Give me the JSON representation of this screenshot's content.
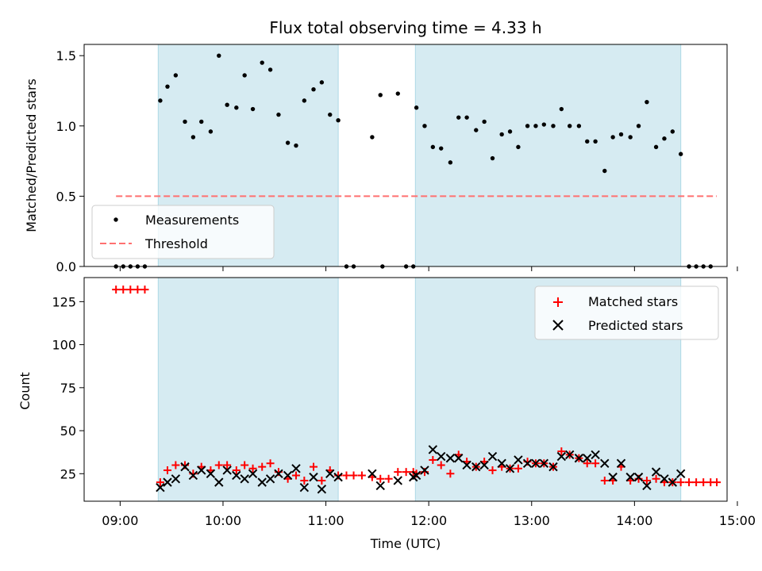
{
  "chart_data": [
    {
      "type": "scatter",
      "title": "Flux total observing time = 4.33 h",
      "xlabel": "",
      "ylabel": "Matched/Predicted stars",
      "xlim": [
        -0.35,
        5.9
      ],
      "ylim": [
        0,
        1.58
      ],
      "yticks": [
        0,
        0.5,
        1.0,
        1.5
      ],
      "ytick_labels": [
        "0.0",
        "0.5",
        "1.0",
        "1.5"
      ],
      "shaded_intervals": [
        [
          0.37,
          2.12
        ],
        [
          2.87,
          5.45
        ]
      ],
      "shade_color": "#add8e6",
      "series": [
        {
          "name": "Measurements",
          "marker": "dot",
          "color": "#000000",
          "points": [
            [
              -0.04,
              0
            ],
            [
              0.03,
              0
            ],
            [
              0.1,
              0
            ],
            [
              0.17,
              0
            ],
            [
              0.24,
              0
            ],
            [
              0.39,
              1.18
            ],
            [
              0.46,
              1.28
            ],
            [
              0.54,
              1.36
            ],
            [
              0.63,
              1.03
            ],
            [
              0.71,
              0.92
            ],
            [
              0.79,
              1.03
            ],
            [
              0.88,
              0.96
            ],
            [
              0.96,
              1.5
            ],
            [
              1.04,
              1.15
            ],
            [
              1.13,
              1.13
            ],
            [
              1.21,
              1.36
            ],
            [
              1.29,
              1.12
            ],
            [
              1.38,
              1.45
            ],
            [
              1.46,
              1.4
            ],
            [
              1.54,
              1.08
            ],
            [
              1.63,
              0.88
            ],
            [
              1.71,
              0.86
            ],
            [
              1.79,
              1.18
            ],
            [
              1.88,
              1.26
            ],
            [
              1.96,
              1.31
            ],
            [
              2.04,
              1.08
            ],
            [
              2.12,
              1.04
            ],
            [
              2.2,
              0
            ],
            [
              2.27,
              0
            ],
            [
              2.45,
              0.92
            ],
            [
              2.53,
              1.22
            ],
            [
              2.55,
              0
            ],
            [
              2.7,
              1.23
            ],
            [
              2.78,
              0
            ],
            [
              2.85,
              0
            ],
            [
              2.88,
              1.13
            ],
            [
              2.96,
              1.0
            ],
            [
              3.04,
              0.85
            ],
            [
              3.12,
              0.84
            ],
            [
              3.21,
              0.74
            ],
            [
              3.29,
              1.06
            ],
            [
              3.37,
              1.06
            ],
            [
              3.46,
              0.97
            ],
            [
              3.54,
              1.03
            ],
            [
              3.62,
              0.77
            ],
            [
              3.71,
              0.94
            ],
            [
              3.79,
              0.96
            ],
            [
              3.87,
              0.85
            ],
            [
              3.96,
              1.0
            ],
            [
              4.04,
              1.0
            ],
            [
              4.12,
              1.01
            ],
            [
              4.21,
              1.0
            ],
            [
              4.29,
              1.12
            ],
            [
              4.37,
              1.0
            ],
            [
              4.46,
              1.0
            ],
            [
              4.54,
              0.89
            ],
            [
              4.62,
              0.89
            ],
            [
              4.71,
              0.68
            ],
            [
              4.79,
              0.92
            ],
            [
              4.87,
              0.94
            ],
            [
              4.96,
              0.92
            ],
            [
              5.04,
              1.0
            ],
            [
              5.12,
              1.17
            ],
            [
              5.21,
              0.85
            ],
            [
              5.29,
              0.91
            ],
            [
              5.37,
              0.96
            ],
            [
              5.45,
              0.8
            ],
            [
              5.53,
              0
            ],
            [
              5.6,
              0
            ],
            [
              5.67,
              0
            ],
            [
              5.74,
              0
            ]
          ]
        },
        {
          "name": "Threshold",
          "marker": "dashed-line",
          "color": "#ff7070",
          "points": [
            [
              -0.04,
              0.5
            ],
            [
              5.8,
              0.5
            ]
          ]
        }
      ],
      "legend_position": "lower-left"
    },
    {
      "type": "scatter",
      "title": "",
      "xlabel": "Time (UTC)",
      "ylabel": "Count",
      "xlim": [
        -0.35,
        5.9
      ],
      "ylim": [
        9,
        139
      ],
      "yticks": [
        25,
        50,
        75,
        100,
        125
      ],
      "ytick_labels": [
        "25",
        "50",
        "75",
        "100",
        "125"
      ],
      "xticks": [
        0,
        1,
        2,
        3,
        4,
        5,
        6
      ],
      "xtick_labels": [
        "09:00",
        "10:00",
        "11:00",
        "12:00",
        "13:00",
        "14:00",
        "15:00"
      ],
      "shaded_intervals": [
        [
          0.37,
          2.12
        ],
        [
          2.87,
          5.45
        ]
      ],
      "shade_color": "#add8e6",
      "series": [
        {
          "name": "Matched stars",
          "marker": "plus",
          "color": "#ff0000",
          "points": [
            [
              -0.04,
              132
            ],
            [
              0.03,
              132
            ],
            [
              0.1,
              132
            ],
            [
              0.17,
              132
            ],
            [
              0.24,
              132
            ],
            [
              0.39,
              20
            ],
            [
              0.46,
              27
            ],
            [
              0.54,
              30
            ],
            [
              0.63,
              30
            ],
            [
              0.71,
              25
            ],
            [
              0.79,
              29
            ],
            [
              0.88,
              27
            ],
            [
              0.96,
              30
            ],
            [
              1.04,
              30
            ],
            [
              1.13,
              27
            ],
            [
              1.21,
              30
            ],
            [
              1.29,
              28
            ],
            [
              1.38,
              29
            ],
            [
              1.46,
              31
            ],
            [
              1.54,
              26
            ],
            [
              1.63,
              22
            ],
            [
              1.71,
              24
            ],
            [
              1.79,
              21
            ],
            [
              1.88,
              29
            ],
            [
              1.96,
              21
            ],
            [
              2.04,
              27
            ],
            [
              2.12,
              24
            ],
            [
              2.2,
              24
            ],
            [
              2.27,
              24
            ],
            [
              2.35,
              24
            ],
            [
              2.45,
              23
            ],
            [
              2.53,
              22
            ],
            [
              2.61,
              22
            ],
            [
              2.7,
              26
            ],
            [
              2.78,
              26
            ],
            [
              2.85,
              26
            ],
            [
              2.88,
              25
            ],
            [
              2.96,
              26
            ],
            [
              3.04,
              33
            ],
            [
              3.12,
              30
            ],
            [
              3.21,
              25
            ],
            [
              3.29,
              36
            ],
            [
              3.37,
              32
            ],
            [
              3.46,
              29
            ],
            [
              3.54,
              32
            ],
            [
              3.62,
              27
            ],
            [
              3.71,
              29
            ],
            [
              3.79,
              28
            ],
            [
              3.87,
              28
            ],
            [
              3.96,
              32
            ],
            [
              4.04,
              31
            ],
            [
              4.12,
              31
            ],
            [
              4.21,
              29
            ],
            [
              4.29,
              38
            ],
            [
              4.37,
              36
            ],
            [
              4.46,
              34
            ],
            [
              4.54,
              31
            ],
            [
              4.62,
              31
            ],
            [
              4.71,
              21
            ],
            [
              4.79,
              21
            ],
            [
              4.87,
              29
            ],
            [
              4.96,
              21
            ],
            [
              5.04,
              22
            ],
            [
              5.12,
              21
            ],
            [
              5.21,
              22
            ],
            [
              5.29,
              20
            ],
            [
              5.37,
              20
            ],
            [
              5.45,
              20
            ],
            [
              5.53,
              20
            ],
            [
              5.6,
              20
            ],
            [
              5.67,
              20
            ],
            [
              5.74,
              20
            ],
            [
              5.8,
              20
            ]
          ]
        },
        {
          "name": "Predicted stars",
          "marker": "x",
          "color": "#000000",
          "points": [
            [
              0.39,
              17
            ],
            [
              0.46,
              20
            ],
            [
              0.54,
              22
            ],
            [
              0.63,
              29
            ],
            [
              0.71,
              24
            ],
            [
              0.79,
              27
            ],
            [
              0.88,
              25
            ],
            [
              0.96,
              20
            ],
            [
              1.04,
              27
            ],
            [
              1.13,
              24
            ],
            [
              1.21,
              22
            ],
            [
              1.29,
              25
            ],
            [
              1.38,
              20
            ],
            [
              1.46,
              22
            ],
            [
              1.54,
              25
            ],
            [
              1.63,
              24
            ],
            [
              1.71,
              28
            ],
            [
              1.79,
              17
            ],
            [
              1.88,
              23
            ],
            [
              1.96,
              16
            ],
            [
              2.04,
              25
            ],
            [
              2.12,
              23
            ],
            [
              2.45,
              25
            ],
            [
              2.53,
              18
            ],
            [
              2.7,
              21
            ],
            [
              2.85,
              23
            ],
            [
              2.88,
              24
            ],
            [
              2.96,
              27
            ],
            [
              3.04,
              39
            ],
            [
              3.12,
              35
            ],
            [
              3.21,
              34
            ],
            [
              3.29,
              34
            ],
            [
              3.37,
              30
            ],
            [
              3.46,
              29
            ],
            [
              3.54,
              30
            ],
            [
              3.62,
              35
            ],
            [
              3.71,
              31
            ],
            [
              3.79,
              28
            ],
            [
              3.87,
              33
            ],
            [
              3.96,
              31
            ],
            [
              4.04,
              31
            ],
            [
              4.12,
              31
            ],
            [
              4.21,
              29
            ],
            [
              4.29,
              35
            ],
            [
              4.37,
              36
            ],
            [
              4.46,
              34
            ],
            [
              4.54,
              34
            ],
            [
              4.62,
              36
            ],
            [
              4.71,
              31
            ],
            [
              4.79,
              23
            ],
            [
              4.87,
              31
            ],
            [
              4.96,
              23
            ],
            [
              5.04,
              23
            ],
            [
              5.12,
              18
            ],
            [
              5.21,
              26
            ],
            [
              5.29,
              22
            ],
            [
              5.37,
              20
            ],
            [
              5.45,
              25
            ]
          ]
        }
      ],
      "legend_position": "upper-right"
    }
  ]
}
